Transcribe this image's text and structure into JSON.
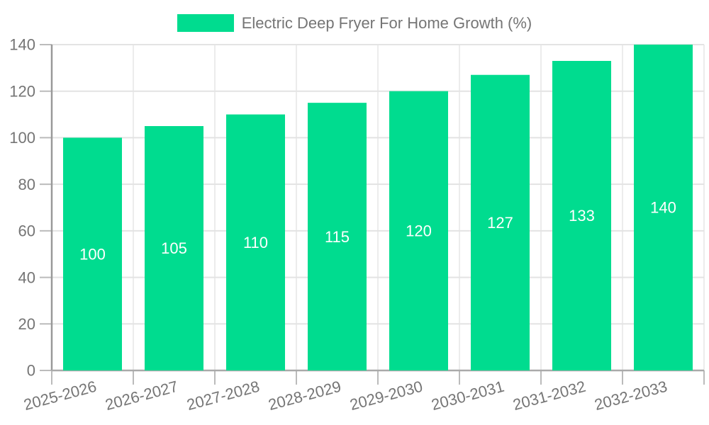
{
  "chart_data": {
    "type": "bar",
    "title": "Electric Deep Fryer For Home Growth (%)",
    "categories": [
      "2025-2026",
      "2026-2027",
      "2027-2028",
      "2028-2029",
      "2029-2030",
      "2030-2031",
      "2031-2032",
      "2032-2033"
    ],
    "values": [
      100,
      105,
      110,
      115,
      120,
      127,
      133,
      140
    ],
    "xlabel": "",
    "ylabel": "",
    "ylim": [
      0,
      140
    ],
    "yticks": [
      0,
      20,
      40,
      60,
      80,
      100,
      120,
      140
    ],
    "grid": true,
    "legend_position": "top-center",
    "x_tick_rotation_deg": -15,
    "value_labels_position": "inside-center",
    "colors": {
      "bar": "#00DC8F",
      "value_label": "#ffffff",
      "axis_label": "#757575",
      "title": "#757575",
      "y_axis_line": "#999999",
      "x_axis_line": "#aaaaaa",
      "tick": "#bbbbbb",
      "grid_horizontal": "#e3e3e3",
      "grid_vertical": "#ececec",
      "background": "#ffffff"
    }
  }
}
